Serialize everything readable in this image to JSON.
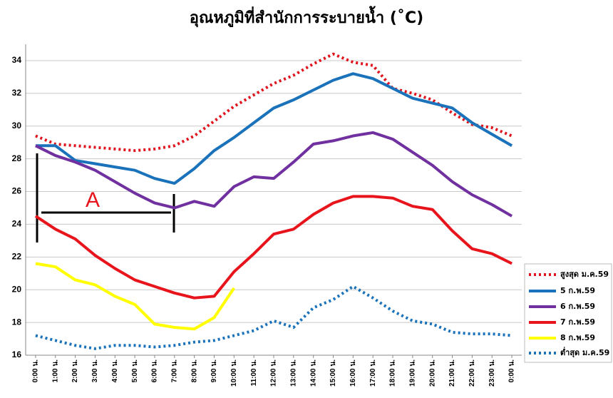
{
  "chart_data": {
    "type": "line",
    "title": "อุณหภูมิที่สำนักการระบายน้ำ (˚C)",
    "annotation": "A",
    "categories": [
      "0:00 น.",
      "1:00 น.",
      "2:00 น.",
      "3:00 น.",
      "4:00 น.",
      "5:00 น.",
      "6:00 น.",
      "7:00 น.",
      "8:00 น.",
      "9:00 น.",
      "10:00 น.",
      "11:00 น.",
      "12:00 น.",
      "13:00 น.",
      "14:00 น.",
      "15:00 น.",
      "16:00 น.",
      "17:00 น.",
      "18:00 น.",
      "19:00 น.",
      "20:00 น.",
      "21:00 น.",
      "22:00 น.",
      "23:00 น.",
      "0:00 น."
    ],
    "ylim": [
      16,
      35
    ],
    "yticks": [
      16,
      18,
      20,
      22,
      24,
      26,
      28,
      30,
      32,
      34
    ],
    "grid": true,
    "legend": "right",
    "series": [
      {
        "name": "สูงสุด ม.ค.59",
        "color": "#e0141e",
        "dash": "dotted",
        "values": [
          29.4,
          28.9,
          28.8,
          28.7,
          28.6,
          28.5,
          28.6,
          28.8,
          29.4,
          30.3,
          31.2,
          31.9,
          32.6,
          33.1,
          33.8,
          34.4,
          33.9,
          33.7,
          32.3,
          32.0,
          31.6,
          30.8,
          30.1,
          29.9,
          29.4
        ]
      },
      {
        "name": "5 ก.พ.59",
        "color": "#1a72bb",
        "dash": "solid",
        "values": [
          28.8,
          28.8,
          27.9,
          27.7,
          27.5,
          27.3,
          26.8,
          26.5,
          27.4,
          28.5,
          29.3,
          30.2,
          31.1,
          31.6,
          32.2,
          32.8,
          33.2,
          32.9,
          32.3,
          31.7,
          31.4,
          31.1,
          30.2,
          29.5,
          28.8
        ]
      },
      {
        "name": "6 ก.พ.59",
        "color": "#7030a0",
        "dash": "solid",
        "values": [
          28.8,
          28.2,
          27.8,
          27.3,
          26.6,
          25.9,
          25.3,
          25.0,
          25.4,
          25.1,
          26.3,
          26.9,
          26.8,
          27.8,
          28.9,
          29.1,
          29.4,
          29.6,
          29.2,
          28.4,
          27.6,
          26.6,
          25.8,
          25.2,
          24.5
        ]
      },
      {
        "name": "7 ก.พ.59",
        "color": "#e8141c",
        "dash": "solid",
        "values": [
          24.5,
          23.7,
          23.1,
          22.1,
          21.3,
          20.6,
          20.2,
          19.8,
          19.5,
          19.6,
          21.1,
          22.2,
          23.4,
          23.7,
          24.6,
          25.3,
          25.7,
          25.7,
          25.6,
          25.1,
          24.9,
          23.6,
          22.5,
          22.2,
          21.6
        ]
      },
      {
        "name": "8 ก.พ.59",
        "color": "#ffff00",
        "dash": "solid",
        "values": [
          21.6,
          21.4,
          20.6,
          20.3,
          19.6,
          19.1,
          17.9,
          17.7,
          17.6,
          18.3,
          20.1,
          null,
          null,
          null,
          null,
          null,
          null,
          null,
          null,
          null,
          null,
          null,
          null,
          null,
          null
        ]
      },
      {
        "name": "ต่ำสุด ม.ค.59",
        "color": "#1a72bb",
        "dash": "dotted",
        "values": [
          17.2,
          16.9,
          16.6,
          16.4,
          16.6,
          16.6,
          16.5,
          16.6,
          16.8,
          16.9,
          17.2,
          17.5,
          18.1,
          17.7,
          18.9,
          19.4,
          20.2,
          19.5,
          18.7,
          18.1,
          17.9,
          17.4,
          17.3,
          17.3,
          17.2
        ]
      }
    ]
  }
}
